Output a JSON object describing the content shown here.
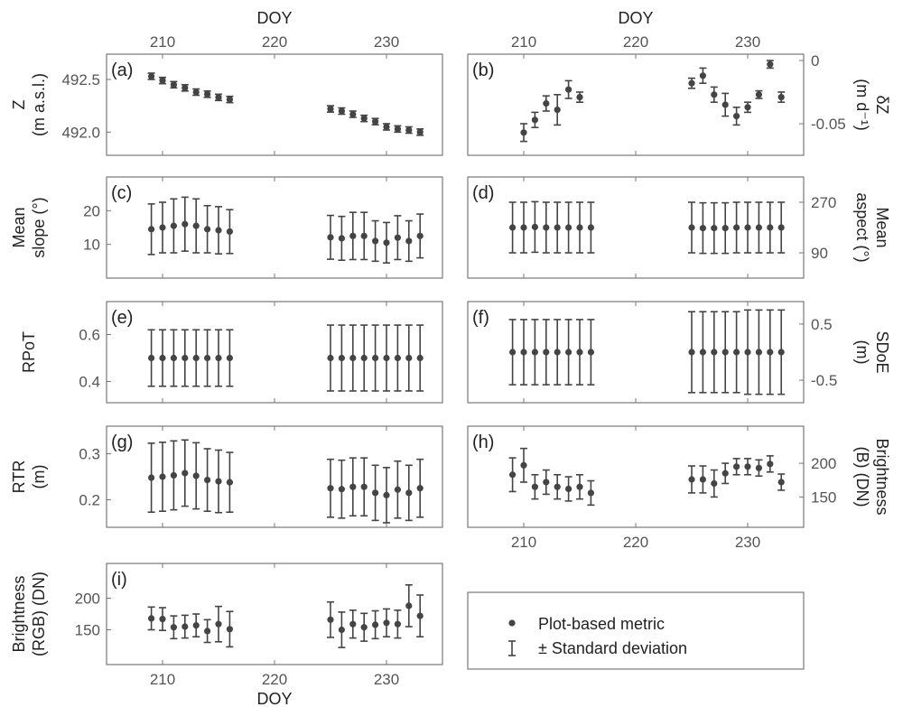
{
  "colors": {
    "marker": "#444444",
    "axis": "#777777",
    "tick_text": "#555555"
  },
  "legend": {
    "items": [
      {
        "label": "Plot-based metric",
        "symbol": "dot"
      },
      {
        "label": "± Standard deviation",
        "symbol": "errorbar"
      }
    ]
  },
  "chart_data": [
    {
      "type": "scatter",
      "panel": "(a)",
      "ylabel_lines": [
        "Z",
        "(m a.s.l.)"
      ],
      "xlabel": "DOY",
      "xlim": [
        205,
        235
      ],
      "xticks": [
        210,
        220,
        230
      ],
      "xlabel_position": "top",
      "ylim": [
        491.78,
        492.74
      ],
      "yticks": [
        492.0,
        492.5
      ],
      "ytick_labels": [
        "492.0",
        "492.5"
      ],
      "yaxis_side": "left",
      "x": [
        209,
        210,
        211,
        212,
        213,
        214,
        215,
        216,
        225,
        226,
        227,
        228,
        229,
        230,
        231,
        232,
        233
      ],
      "y": [
        492.53,
        492.49,
        492.45,
        492.42,
        492.38,
        492.36,
        492.33,
        492.31,
        492.22,
        492.2,
        492.17,
        492.13,
        492.1,
        492.05,
        492.03,
        492.02,
        492.0
      ],
      "err": [
        0.03,
        0.03,
        0.03,
        0.03,
        0.03,
        0.03,
        0.03,
        0.03,
        0.03,
        0.03,
        0.03,
        0.03,
        0.03,
        0.03,
        0.03,
        0.03,
        0.03
      ]
    },
    {
      "type": "scatter",
      "panel": "(b)",
      "ylabel_lines": [
        "δZ",
        "(m d⁻¹)"
      ],
      "xlabel": "DOY",
      "xlim": [
        205,
        235
      ],
      "xticks": [
        210,
        220,
        230
      ],
      "xlabel_position": "top",
      "ylim": [
        -0.075,
        0.005
      ],
      "yticks": [
        0,
        -0.05
      ],
      "ytick_labels": [
        "0",
        "-0.05"
      ],
      "yaxis_side": "right",
      "x": [
        210,
        211,
        212,
        213,
        214,
        215,
        225,
        226,
        227,
        228,
        229,
        230,
        231,
        232,
        233
      ],
      "y": [
        -0.057,
        -0.047,
        -0.034,
        -0.039,
        -0.023,
        -0.029,
        -0.018,
        -0.012,
        -0.027,
        -0.035,
        -0.044,
        -0.037,
        -0.027,
        -0.003,
        -0.029
      ],
      "err": [
        0.007,
        0.006,
        0.006,
        0.012,
        0.007,
        0.004,
        0.004,
        0.006,
        0.006,
        0.009,
        0.007,
        0.004,
        0.003,
        0.003,
        0.004
      ]
    },
    {
      "type": "scatter",
      "panel": "(c)",
      "ylabel_lines": [
        "Mean",
        "slope (°)"
      ],
      "xlim": [
        205,
        235
      ],
      "xticks": [
        210,
        220,
        230
      ],
      "ylim": [
        0,
        30
      ],
      "yticks": [
        10,
        20
      ],
      "ytick_labels": [
        "10",
        "20"
      ],
      "yaxis_side": "left",
      "x": [
        209,
        210,
        211,
        212,
        213,
        214,
        215,
        216,
        225,
        226,
        227,
        228,
        229,
        230,
        231,
        232,
        233
      ],
      "y": [
        14.5,
        15.0,
        15.5,
        16.0,
        15.5,
        14.5,
        14.2,
        13.8,
        12.1,
        11.8,
        12.5,
        12.5,
        11.0,
        10.5,
        12.0,
        11.0,
        12.5
      ],
      "err": [
        7.5,
        7.5,
        8.0,
        8.0,
        8.0,
        7.0,
        7.0,
        6.5,
        6.5,
        6.5,
        7.0,
        7.0,
        6.0,
        6.0,
        6.5,
        6.0,
        6.5
      ]
    },
    {
      "type": "scatter",
      "panel": "(d)",
      "ylabel_lines": [
        "Mean",
        "aspect (°)"
      ],
      "xlim": [
        205,
        235
      ],
      "xticks": [
        210,
        220,
        230
      ],
      "ylim": [
        0,
        360
      ],
      "yticks": [
        90,
        270
      ],
      "ytick_labels": [
        "90",
        "270"
      ],
      "yaxis_side": "right",
      "x": [
        209,
        210,
        211,
        212,
        213,
        214,
        215,
        216,
        225,
        226,
        227,
        228,
        229,
        230,
        231,
        232,
        233
      ],
      "y": [
        180,
        180,
        182,
        180,
        180,
        180,
        180,
        180,
        180,
        178,
        178,
        178,
        180,
        180,
        180,
        180,
        180
      ],
      "err": [
        90,
        90,
        90,
        90,
        90,
        90,
        90,
        90,
        90,
        90,
        90,
        90,
        90,
        90,
        90,
        90,
        90
      ]
    },
    {
      "type": "scatter",
      "panel": "(e)",
      "ylabel_lines": [
        "RPoT"
      ],
      "xlim": [
        205,
        235
      ],
      "xticks": [
        210,
        220,
        230
      ],
      "ylim": [
        0.31,
        0.74
      ],
      "yticks": [
        0.4,
        0.6
      ],
      "ytick_labels": [
        "0.4",
        "0.6"
      ],
      "yaxis_side": "left",
      "x": [
        209,
        210,
        211,
        212,
        213,
        214,
        215,
        216,
        225,
        226,
        227,
        228,
        229,
        230,
        231,
        232,
        233
      ],
      "y": [
        0.5,
        0.5,
        0.5,
        0.5,
        0.5,
        0.5,
        0.5,
        0.5,
        0.5,
        0.5,
        0.5,
        0.5,
        0.5,
        0.5,
        0.5,
        0.5,
        0.5
      ],
      "err": [
        0.12,
        0.12,
        0.12,
        0.12,
        0.12,
        0.12,
        0.12,
        0.12,
        0.14,
        0.14,
        0.14,
        0.14,
        0.14,
        0.14,
        0.14,
        0.14,
        0.14
      ]
    },
    {
      "type": "scatter",
      "panel": "(f)",
      "ylabel_lines": [
        "SDoE",
        "(m)"
      ],
      "xlim": [
        205,
        235
      ],
      "xticks": [
        210,
        220,
        230
      ],
      "ylim": [
        -0.9,
        0.9
      ],
      "yticks": [
        0.5,
        -0.5
      ],
      "ytick_labels": [
        "0.5",
        "-0.5"
      ],
      "yaxis_side": "right",
      "x": [
        209,
        210,
        211,
        212,
        213,
        214,
        215,
        216,
        225,
        226,
        227,
        228,
        229,
        230,
        231,
        232,
        233
      ],
      "y": [
        0,
        0,
        0,
        0,
        0,
        0,
        0,
        0,
        0,
        0,
        0,
        0,
        0,
        0,
        0,
        0,
        0
      ],
      "err": [
        0.58,
        0.58,
        0.58,
        0.58,
        0.58,
        0.58,
        0.58,
        0.58,
        0.72,
        0.72,
        0.72,
        0.72,
        0.72,
        0.75,
        0.75,
        0.75,
        0.75
      ]
    },
    {
      "type": "scatter",
      "panel": "(g)",
      "ylabel_lines": [
        "RTR",
        "(m)"
      ],
      "xlim": [
        205,
        235
      ],
      "xticks": [
        210,
        220,
        230
      ],
      "ylim": [
        0.14,
        0.36
      ],
      "yticks": [
        0.2,
        0.3
      ],
      "ytick_labels": [
        "0.2",
        "0.3"
      ],
      "yaxis_side": "left",
      "x": [
        209,
        210,
        211,
        212,
        213,
        214,
        215,
        216,
        225,
        226,
        227,
        228,
        229,
        230,
        231,
        232,
        233
      ],
      "y": [
        0.248,
        0.25,
        0.253,
        0.258,
        0.252,
        0.243,
        0.24,
        0.238,
        0.225,
        0.223,
        0.228,
        0.228,
        0.215,
        0.21,
        0.222,
        0.215,
        0.225
      ],
      "err": [
        0.075,
        0.075,
        0.075,
        0.072,
        0.072,
        0.068,
        0.068,
        0.065,
        0.063,
        0.063,
        0.063,
        0.063,
        0.06,
        0.06,
        0.062,
        0.06,
        0.063
      ]
    },
    {
      "type": "scatter",
      "panel": "(h)",
      "ylabel_lines": [
        "Brightness",
        "(B) (DN)"
      ],
      "xlabel": "",
      "xlim": [
        205,
        235
      ],
      "xticks": [
        210,
        220,
        230
      ],
      "ylim": [
        105,
        255
      ],
      "yticks": [
        150,
        200
      ],
      "ytick_labels": [
        "150",
        "200"
      ],
      "yaxis_side": "right",
      "x": [
        209,
        210,
        211,
        212,
        213,
        214,
        215,
        216,
        225,
        226,
        227,
        228,
        229,
        230,
        231,
        232,
        233
      ],
      "y": [
        183,
        197,
        165,
        172,
        165,
        162,
        165,
        156,
        176,
        176,
        170,
        185,
        195,
        195,
        193,
        199,
        172
      ],
      "err": [
        25,
        25,
        18,
        18,
        18,
        18,
        18,
        18,
        20,
        20,
        20,
        15,
        12,
        12,
        12,
        12,
        12
      ]
    },
    {
      "type": "scatter",
      "panel": "(i)",
      "ylabel_lines": [
        "Brightness",
        "(RGB) (DN)"
      ],
      "xlabel": "DOY",
      "xlim": [
        205,
        235
      ],
      "xticks": [
        210,
        220,
        230
      ],
      "xlabel_position": "bottom",
      "ylim": [
        95,
        255
      ],
      "yticks": [
        150,
        200
      ],
      "ytick_labels": [
        "150",
        "200"
      ],
      "yaxis_side": "left",
      "x": [
        209,
        210,
        211,
        212,
        213,
        214,
        215,
        216,
        225,
        226,
        227,
        228,
        229,
        230,
        231,
        232,
        233
      ],
      "y": [
        168,
        167,
        154,
        155,
        157,
        148,
        159,
        151,
        166,
        150,
        159,
        154,
        158,
        161,
        159,
        188,
        172
      ],
      "err": [
        18,
        18,
        18,
        18,
        18,
        18,
        28,
        28,
        28,
        28,
        22,
        22,
        22,
        22,
        22,
        33,
        33
      ]
    }
  ]
}
